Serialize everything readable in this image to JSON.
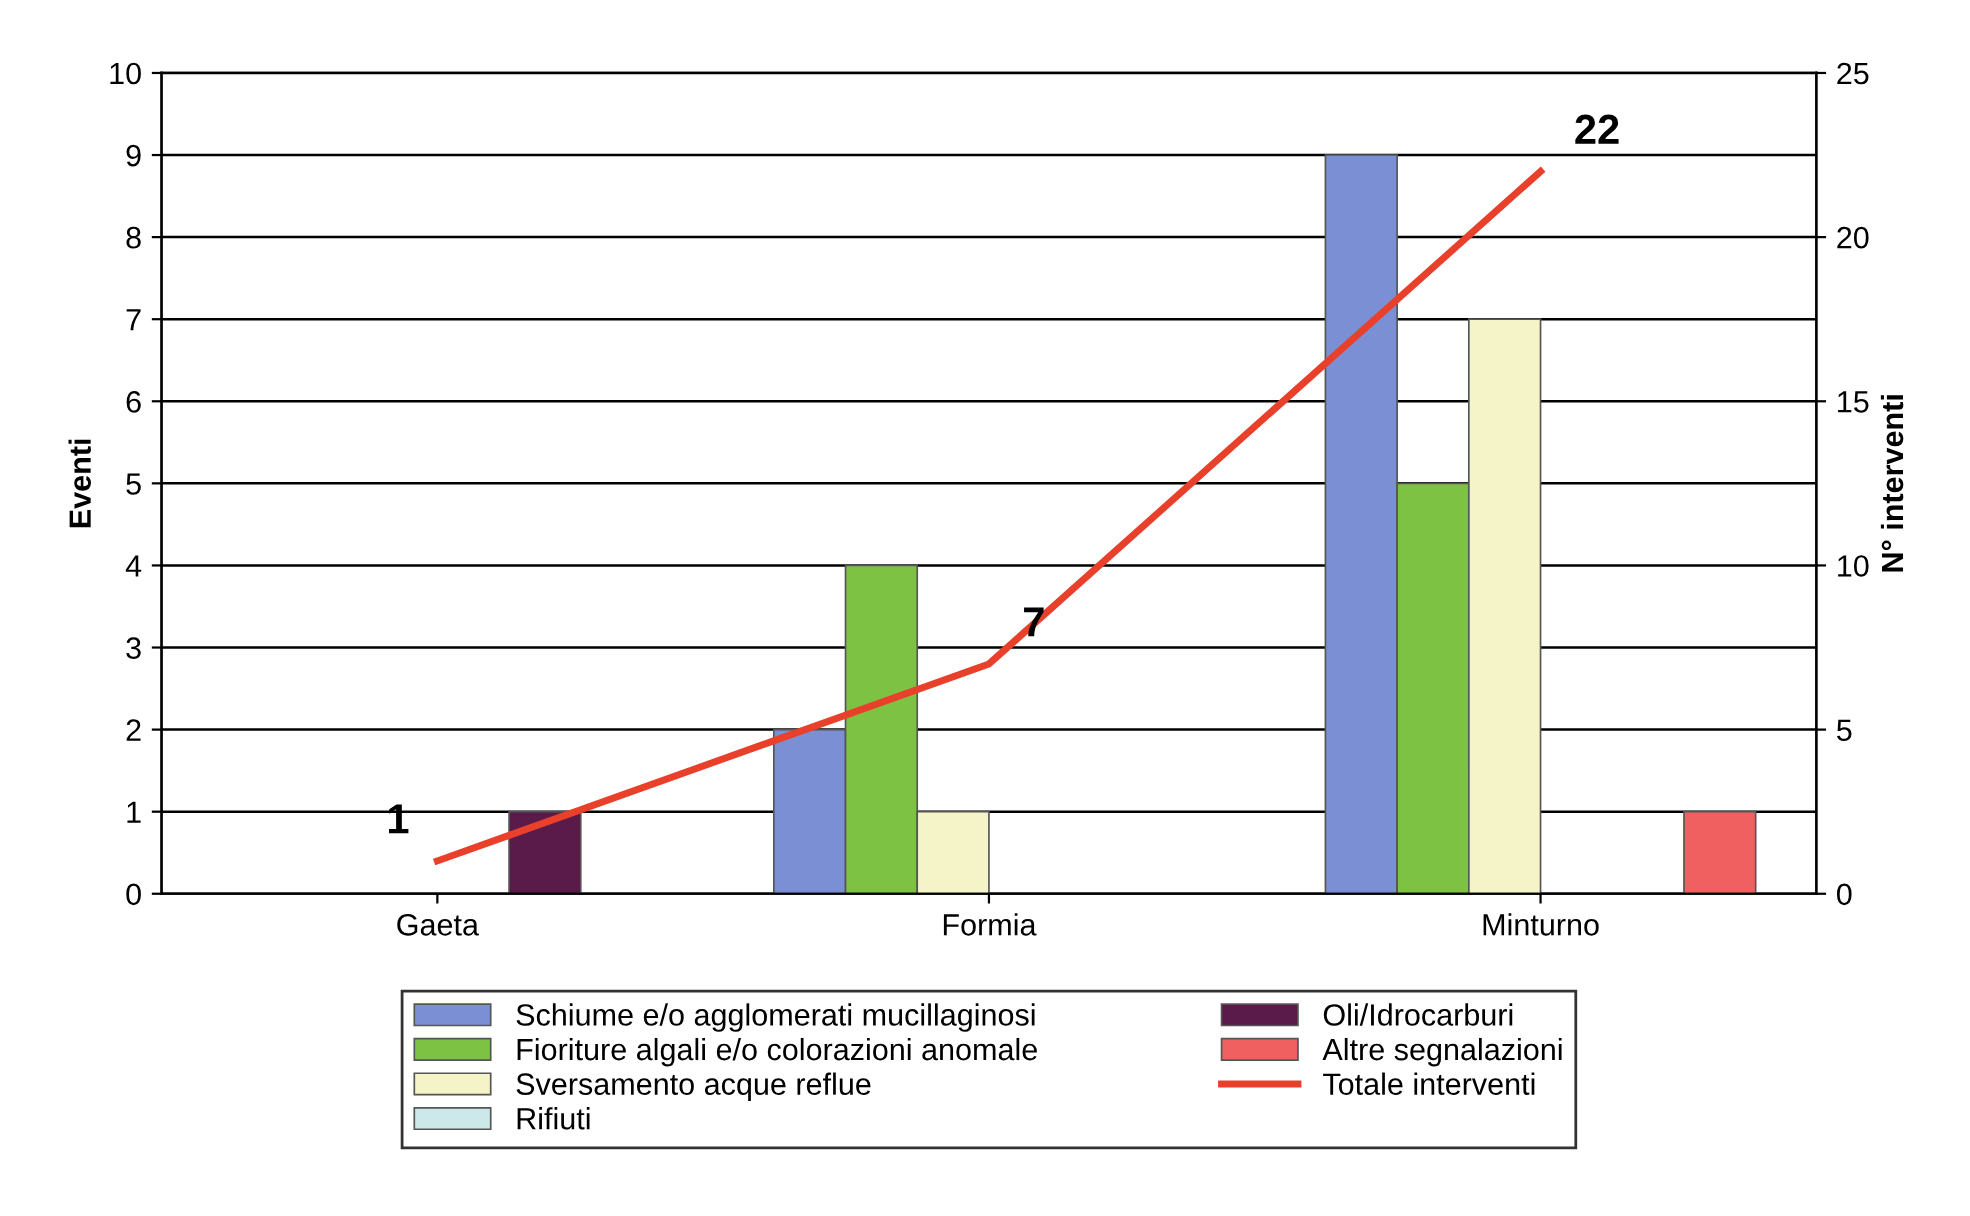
{
  "chart_data": {
    "type": "bar",
    "categories": [
      "Gaeta",
      "Formia",
      "Minturno"
    ],
    "ylabel": "Eventi",
    "y2label": "N° interventi",
    "ylim": [
      0,
      10
    ],
    "yticks": [
      0,
      1,
      2,
      3,
      4,
      5,
      6,
      7,
      8,
      9,
      10
    ],
    "y2lim": [
      0,
      25
    ],
    "y2ticks": [
      0,
      5,
      10,
      15,
      20,
      25
    ],
    "grid": "y",
    "legend": "bottom",
    "series": [
      {
        "name": "Schiume e/o agglomerati mucillaginosi",
        "color": "#7b8fd4",
        "values": [
          0,
          2,
          9
        ]
      },
      {
        "name": "Fioriture algali e/o colorazioni anomale",
        "color": "#7dc242",
        "values": [
          0,
          4,
          5
        ]
      },
      {
        "name": "Sversamento acque reflue",
        "color": "#f5f3c8",
        "values": [
          0,
          1,
          7
        ]
      },
      {
        "name": "Rifiuti",
        "color": "#cce8e8",
        "values": [
          0,
          0,
          0
        ]
      },
      {
        "name": "Oli/Idrocarburi",
        "color": "#5a1a4a",
        "values": [
          1,
          0,
          0
        ]
      },
      {
        "name": "Altre segnalazioni",
        "color": "#f06060",
        "values": [
          0,
          0,
          1
        ]
      },
      {
        "name": "Totale interventi",
        "color": "#e8402a",
        "type": "line",
        "axis": "y2",
        "marker": "none",
        "values": [
          1,
          7,
          22
        ],
        "value_labels": [
          "1",
          "7",
          "22"
        ]
      }
    ]
  }
}
